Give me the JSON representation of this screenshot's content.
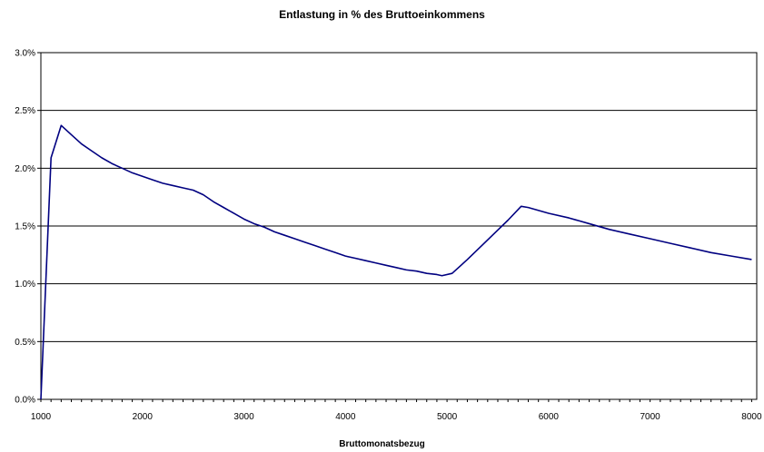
{
  "chart_data": {
    "type": "line",
    "title": "Entlastung in % des Bruttoeinkommens",
    "xlabel": "Bruttomonatsbezug",
    "ylabel": "",
    "xlim": [
      1000,
      8050
    ],
    "ylim": [
      0,
      0.03
    ],
    "x_ticks": [
      1000,
      2000,
      3000,
      4000,
      5000,
      6000,
      7000,
      8000
    ],
    "x_tick_labels": [
      "1000",
      "2000",
      "3000",
      "4000",
      "5000",
      "6000",
      "7000",
      "8000"
    ],
    "y_ticks": [
      0,
      0.005,
      0.01,
      0.015,
      0.02,
      0.025,
      0.03
    ],
    "y_tick_labels": [
      "0.0%",
      "0.5%",
      "1.0%",
      "1.5%",
      "2.0%",
      "2.5%",
      "3.0%"
    ],
    "grid": "horizontal",
    "legend": "none",
    "line_color": "#000080",
    "series": [
      {
        "x": [
          1000,
          1100,
          1200,
          1300,
          1400,
          1500,
          1600,
          1700,
          1800,
          1900,
          2000,
          2100,
          2200,
          2300,
          2400,
          2500,
          2600,
          2700,
          2800,
          2900,
          3000,
          3100,
          3200,
          3300,
          3400,
          3500,
          3600,
          3700,
          3800,
          3900,
          4000,
          4100,
          4200,
          4300,
          4400,
          4500,
          4600,
          4700,
          4800,
          4900,
          4950,
          5050,
          5200,
          5400,
          5600,
          5730,
          5800,
          6000,
          6200,
          6400,
          6600,
          6800,
          7000,
          7200,
          7400,
          7600,
          7800,
          8000
        ],
        "values": [
          0,
          0.0209,
          0.0237,
          0.0229,
          0.0221,
          0.0215,
          0.0209,
          0.0204,
          0.02,
          0.0196,
          0.0193,
          0.019,
          0.0187,
          0.0185,
          0.0183,
          0.0181,
          0.0177,
          0.0171,
          0.0166,
          0.0161,
          0.0156,
          0.0152,
          0.0149,
          0.0145,
          0.0142,
          0.0139,
          0.0136,
          0.0133,
          0.013,
          0.0127,
          0.0124,
          0.0122,
          0.012,
          0.0118,
          0.0116,
          0.0114,
          0.0112,
          0.0111,
          0.0109,
          0.0108,
          0.0107,
          0.0109,
          0.0121,
          0.0138,
          0.0155,
          0.0167,
          0.0166,
          0.0161,
          0.0157,
          0.0152,
          0.0147,
          0.0143,
          0.0139,
          0.0135,
          0.0131,
          0.0127,
          0.0124,
          0.0121
        ]
      }
    ]
  }
}
